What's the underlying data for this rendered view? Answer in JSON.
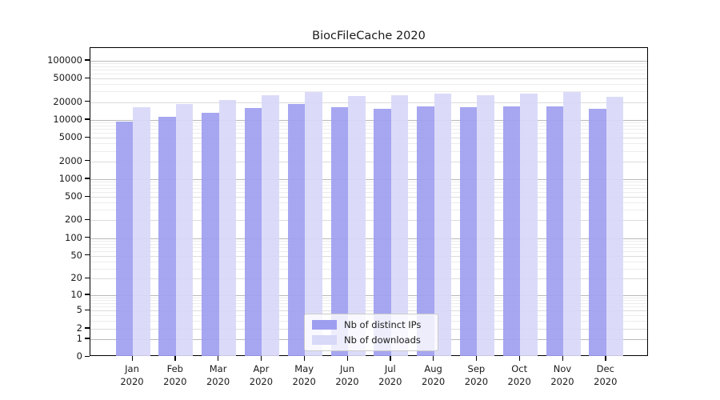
{
  "figure": {
    "title": "BiocFileCache 2020",
    "background": "#ffffff"
  },
  "chart_data": {
    "type": "bar",
    "title": "BiocFileCache 2020",
    "categories": [
      "Jan 2020",
      "Feb 2020",
      "Mar 2020",
      "Apr 2020",
      "May 2020",
      "Jun 2020",
      "Jul 2020",
      "Aug 2020",
      "Sep 2020",
      "Oct 2020",
      "Nov 2020",
      "Dec 2020"
    ],
    "series": [
      {
        "name": "Nb of distinct IPs",
        "color": "#9e9ef0",
        "values": [
          9200,
          11100,
          13000,
          15700,
          18500,
          16200,
          15300,
          17000,
          16200,
          16800,
          17000,
          15300
        ]
      },
      {
        "name": "Nb of downloads",
        "color": "#d8d8f8",
        "values": [
          16300,
          18300,
          21600,
          25700,
          29200,
          25200,
          26200,
          27700,
          26200,
          27700,
          29400,
          24400
        ]
      }
    ],
    "yscale": "log1p",
    "yticks": [
      0,
      1,
      2,
      5,
      10,
      20,
      50,
      100,
      200,
      500,
      1000,
      2000,
      5000,
      10000,
      20000,
      50000,
      100000
    ],
    "ylim": [
      0,
      100000
    ],
    "xlabel": "",
    "ylabel": "",
    "grid": "horizontal major+minor",
    "legend_position": "lower center",
    "colors": {
      "grid_power10": "#b9b9b9",
      "grid_labeled": "#dbdbdb",
      "grid_minor": "#ececec",
      "spine": "#000000"
    }
  }
}
